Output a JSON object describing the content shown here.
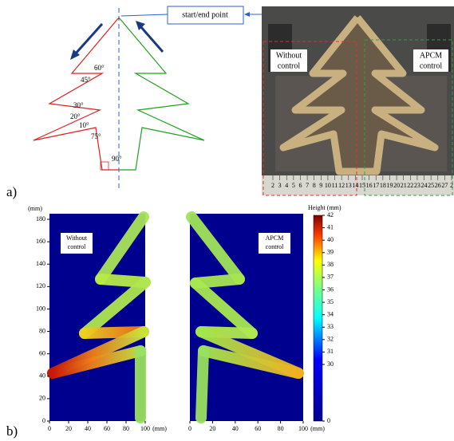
{
  "panel_a": {
    "label": "a)",
    "start_end": "start/end point",
    "angles": [
      "60°",
      "45°",
      "30°",
      "20°",
      "10°",
      "75°",
      "90°"
    ],
    "photo": {
      "left_label": [
        "Without",
        "control"
      ],
      "right_label": [
        "APCM",
        "control"
      ],
      "ruler": [
        "2",
        "3",
        "4",
        "5",
        "6",
        "7",
        "8",
        "9",
        "10",
        "11",
        "12",
        "13",
        "14",
        "15",
        "16",
        "17",
        "18",
        "19",
        "20",
        "21",
        "22",
        "23",
        "24",
        "25",
        "26",
        "27",
        "2"
      ]
    }
  },
  "panel_b": {
    "label": "b)"
  },
  "chart_data": [
    {
      "type": "heatmap",
      "annotation": [
        "Without",
        "control"
      ],
      "xlim": [
        0,
        100
      ],
      "xticks": [
        0,
        20,
        40,
        60,
        80,
        100
      ],
      "x_unit": "(mm)",
      "ylim": [
        0,
        185
      ],
      "yticks": [
        0,
        20,
        40,
        60,
        80,
        100,
        120,
        140,
        160,
        180
      ],
      "y_unit": "(mm)"
    },
    {
      "type": "heatmap",
      "annotation": [
        "APCM",
        "control"
      ],
      "xlim": [
        0,
        100
      ],
      "xticks": [
        0,
        20,
        40,
        60,
        80,
        100
      ],
      "x_unit": "(mm)",
      "colorbar": {
        "label": "Height (mm)",
        "clim": [
          0,
          42
        ],
        "ticks": [
          0,
          30,
          31,
          32,
          33,
          34,
          35,
          36,
          37,
          38,
          39,
          40,
          41,
          42
        ]
      }
    }
  ]
}
